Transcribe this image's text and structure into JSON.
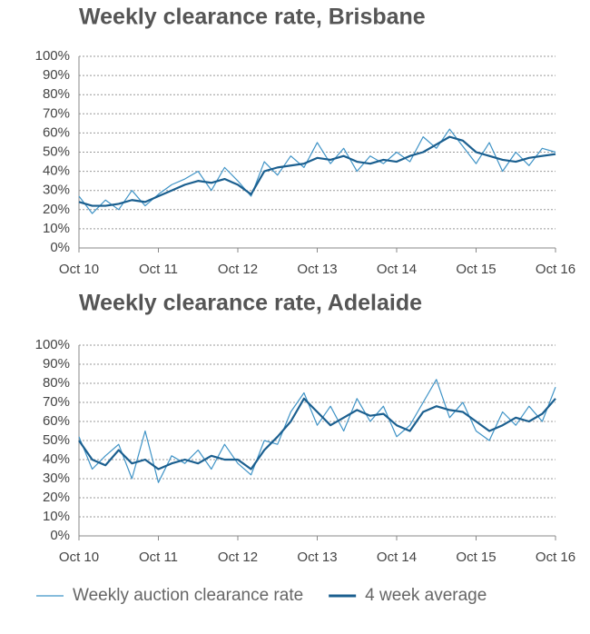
{
  "chart_data": [
    {
      "type": "line",
      "title": "Weekly clearance rate, Brisbane",
      "x": [
        "2010-10",
        "2010-12",
        "2011-02",
        "2011-04",
        "2011-06",
        "2011-08",
        "2011-10",
        "2011-12",
        "2012-02",
        "2012-04",
        "2012-06",
        "2012-08",
        "2012-10",
        "2012-12",
        "2013-02",
        "2013-04",
        "2013-06",
        "2013-08",
        "2013-10",
        "2013-12",
        "2014-02",
        "2014-04",
        "2014-06",
        "2014-08",
        "2014-10",
        "2014-12",
        "2015-02",
        "2015-04",
        "2015-06",
        "2015-08",
        "2015-10",
        "2015-12",
        "2016-02",
        "2016-04",
        "2016-06",
        "2016-08",
        "2016-10"
      ],
      "series": [
        {
          "color": "#3f93c6",
          "values": [
            27,
            18,
            25,
            20,
            30,
            22,
            28,
            33,
            36,
            40,
            30,
            42,
            35,
            27,
            45,
            38,
            48,
            42,
            55,
            44,
            52,
            40,
            48,
            44,
            50,
            45,
            58,
            52,
            62,
            53,
            44,
            55,
            40,
            50,
            43,
            52,
            50
          ]
        },
        {
          "color": "#1b5f8f",
          "values": [
            24,
            22,
            22,
            23,
            25,
            24,
            27,
            30,
            33,
            35,
            34,
            36,
            33,
            28,
            40,
            42,
            43,
            44,
            47,
            46,
            48,
            45,
            44,
            46,
            45,
            48,
            50,
            54,
            58,
            56,
            50,
            48,
            46,
            45,
            47,
            48,
            49
          ]
        }
      ],
      "xticks": [
        {
          "value": "2010-10",
          "label": "Oct 10"
        },
        {
          "value": "2011-10",
          "label": "Oct 11"
        },
        {
          "value": "2012-10",
          "label": "Oct 12"
        },
        {
          "value": "2013-10",
          "label": "Oct 13"
        },
        {
          "value": "2014-10",
          "label": "Oct 14"
        },
        {
          "value": "2015-10",
          "label": "Oct 15"
        },
        {
          "value": "2016-10",
          "label": "Oct 16"
        }
      ],
      "ylim": [
        0,
        100
      ],
      "yticks": [
        {
          "value": 0,
          "label": "0%"
        },
        {
          "value": 10,
          "label": "10%"
        },
        {
          "value": 20,
          "label": "20%"
        },
        {
          "value": 30,
          "label": "30%"
        },
        {
          "value": 40,
          "label": "40%"
        },
        {
          "value": 50,
          "label": "50%"
        },
        {
          "value": 60,
          "label": "60%"
        },
        {
          "value": 70,
          "label": "70%"
        },
        {
          "value": 80,
          "label": "80%"
        },
        {
          "value": 90,
          "label": "90%"
        },
        {
          "value": 100,
          "label": "100%"
        }
      ],
      "grid": true
    },
    {
      "type": "line",
      "title": "Weekly clearance rate, Adelaide",
      "x": [
        "2010-10",
        "2010-12",
        "2011-02",
        "2011-04",
        "2011-06",
        "2011-08",
        "2011-10",
        "2011-12",
        "2012-02",
        "2012-04",
        "2012-06",
        "2012-08",
        "2012-10",
        "2012-12",
        "2013-02",
        "2013-04",
        "2013-06",
        "2013-08",
        "2013-10",
        "2013-12",
        "2014-02",
        "2014-04",
        "2014-06",
        "2014-08",
        "2014-10",
        "2014-12",
        "2015-02",
        "2015-04",
        "2015-06",
        "2015-08",
        "2015-10",
        "2015-12",
        "2016-02",
        "2016-04",
        "2016-06",
        "2016-08",
        "2016-10"
      ],
      "series": [
        {
          "name": "Weekly auction clearance rate",
          "color": "#3f93c6",
          "values": [
            52,
            35,
            42,
            48,
            30,
            55,
            28,
            42,
            38,
            45,
            35,
            48,
            38,
            32,
            50,
            48,
            65,
            75,
            58,
            68,
            55,
            72,
            60,
            68,
            52,
            58,
            70,
            82,
            62,
            70,
            55,
            50,
            65,
            58,
            68,
            60,
            78
          ]
        },
        {
          "name": "4 week average",
          "color": "#1b5f8f",
          "values": [
            50,
            40,
            37,
            45,
            38,
            40,
            35,
            38,
            40,
            38,
            42,
            40,
            40,
            35,
            45,
            52,
            60,
            72,
            65,
            58,
            62,
            66,
            63,
            64,
            58,
            55,
            65,
            68,
            66,
            65,
            60,
            55,
            58,
            62,
            60,
            64,
            72
          ]
        }
      ],
      "xticks": [
        {
          "value": "2010-10",
          "label": "Oct 10"
        },
        {
          "value": "2011-10",
          "label": "Oct 11"
        },
        {
          "value": "2012-10",
          "label": "Oct 12"
        },
        {
          "value": "2013-10",
          "label": "Oct 13"
        },
        {
          "value": "2014-10",
          "label": "Oct 14"
        },
        {
          "value": "2015-10",
          "label": "Oct 15"
        },
        {
          "value": "2016-10",
          "label": "Oct 16"
        }
      ],
      "ylim": [
        0,
        100
      ],
      "yticks": [
        {
          "value": 0,
          "label": "0%"
        },
        {
          "value": 10,
          "label": "10%"
        },
        {
          "value": 20,
          "label": "20%"
        },
        {
          "value": 30,
          "label": "30%"
        },
        {
          "value": 40,
          "label": "40%"
        },
        {
          "value": 50,
          "label": "50%"
        },
        {
          "value": 60,
          "label": "60%"
        },
        {
          "value": 70,
          "label": "70%"
        },
        {
          "value": 80,
          "label": "80%"
        },
        {
          "value": 90,
          "label": "90%"
        },
        {
          "value": 100,
          "label": "100%"
        }
      ],
      "grid": true,
      "legend": "bottom"
    }
  ]
}
